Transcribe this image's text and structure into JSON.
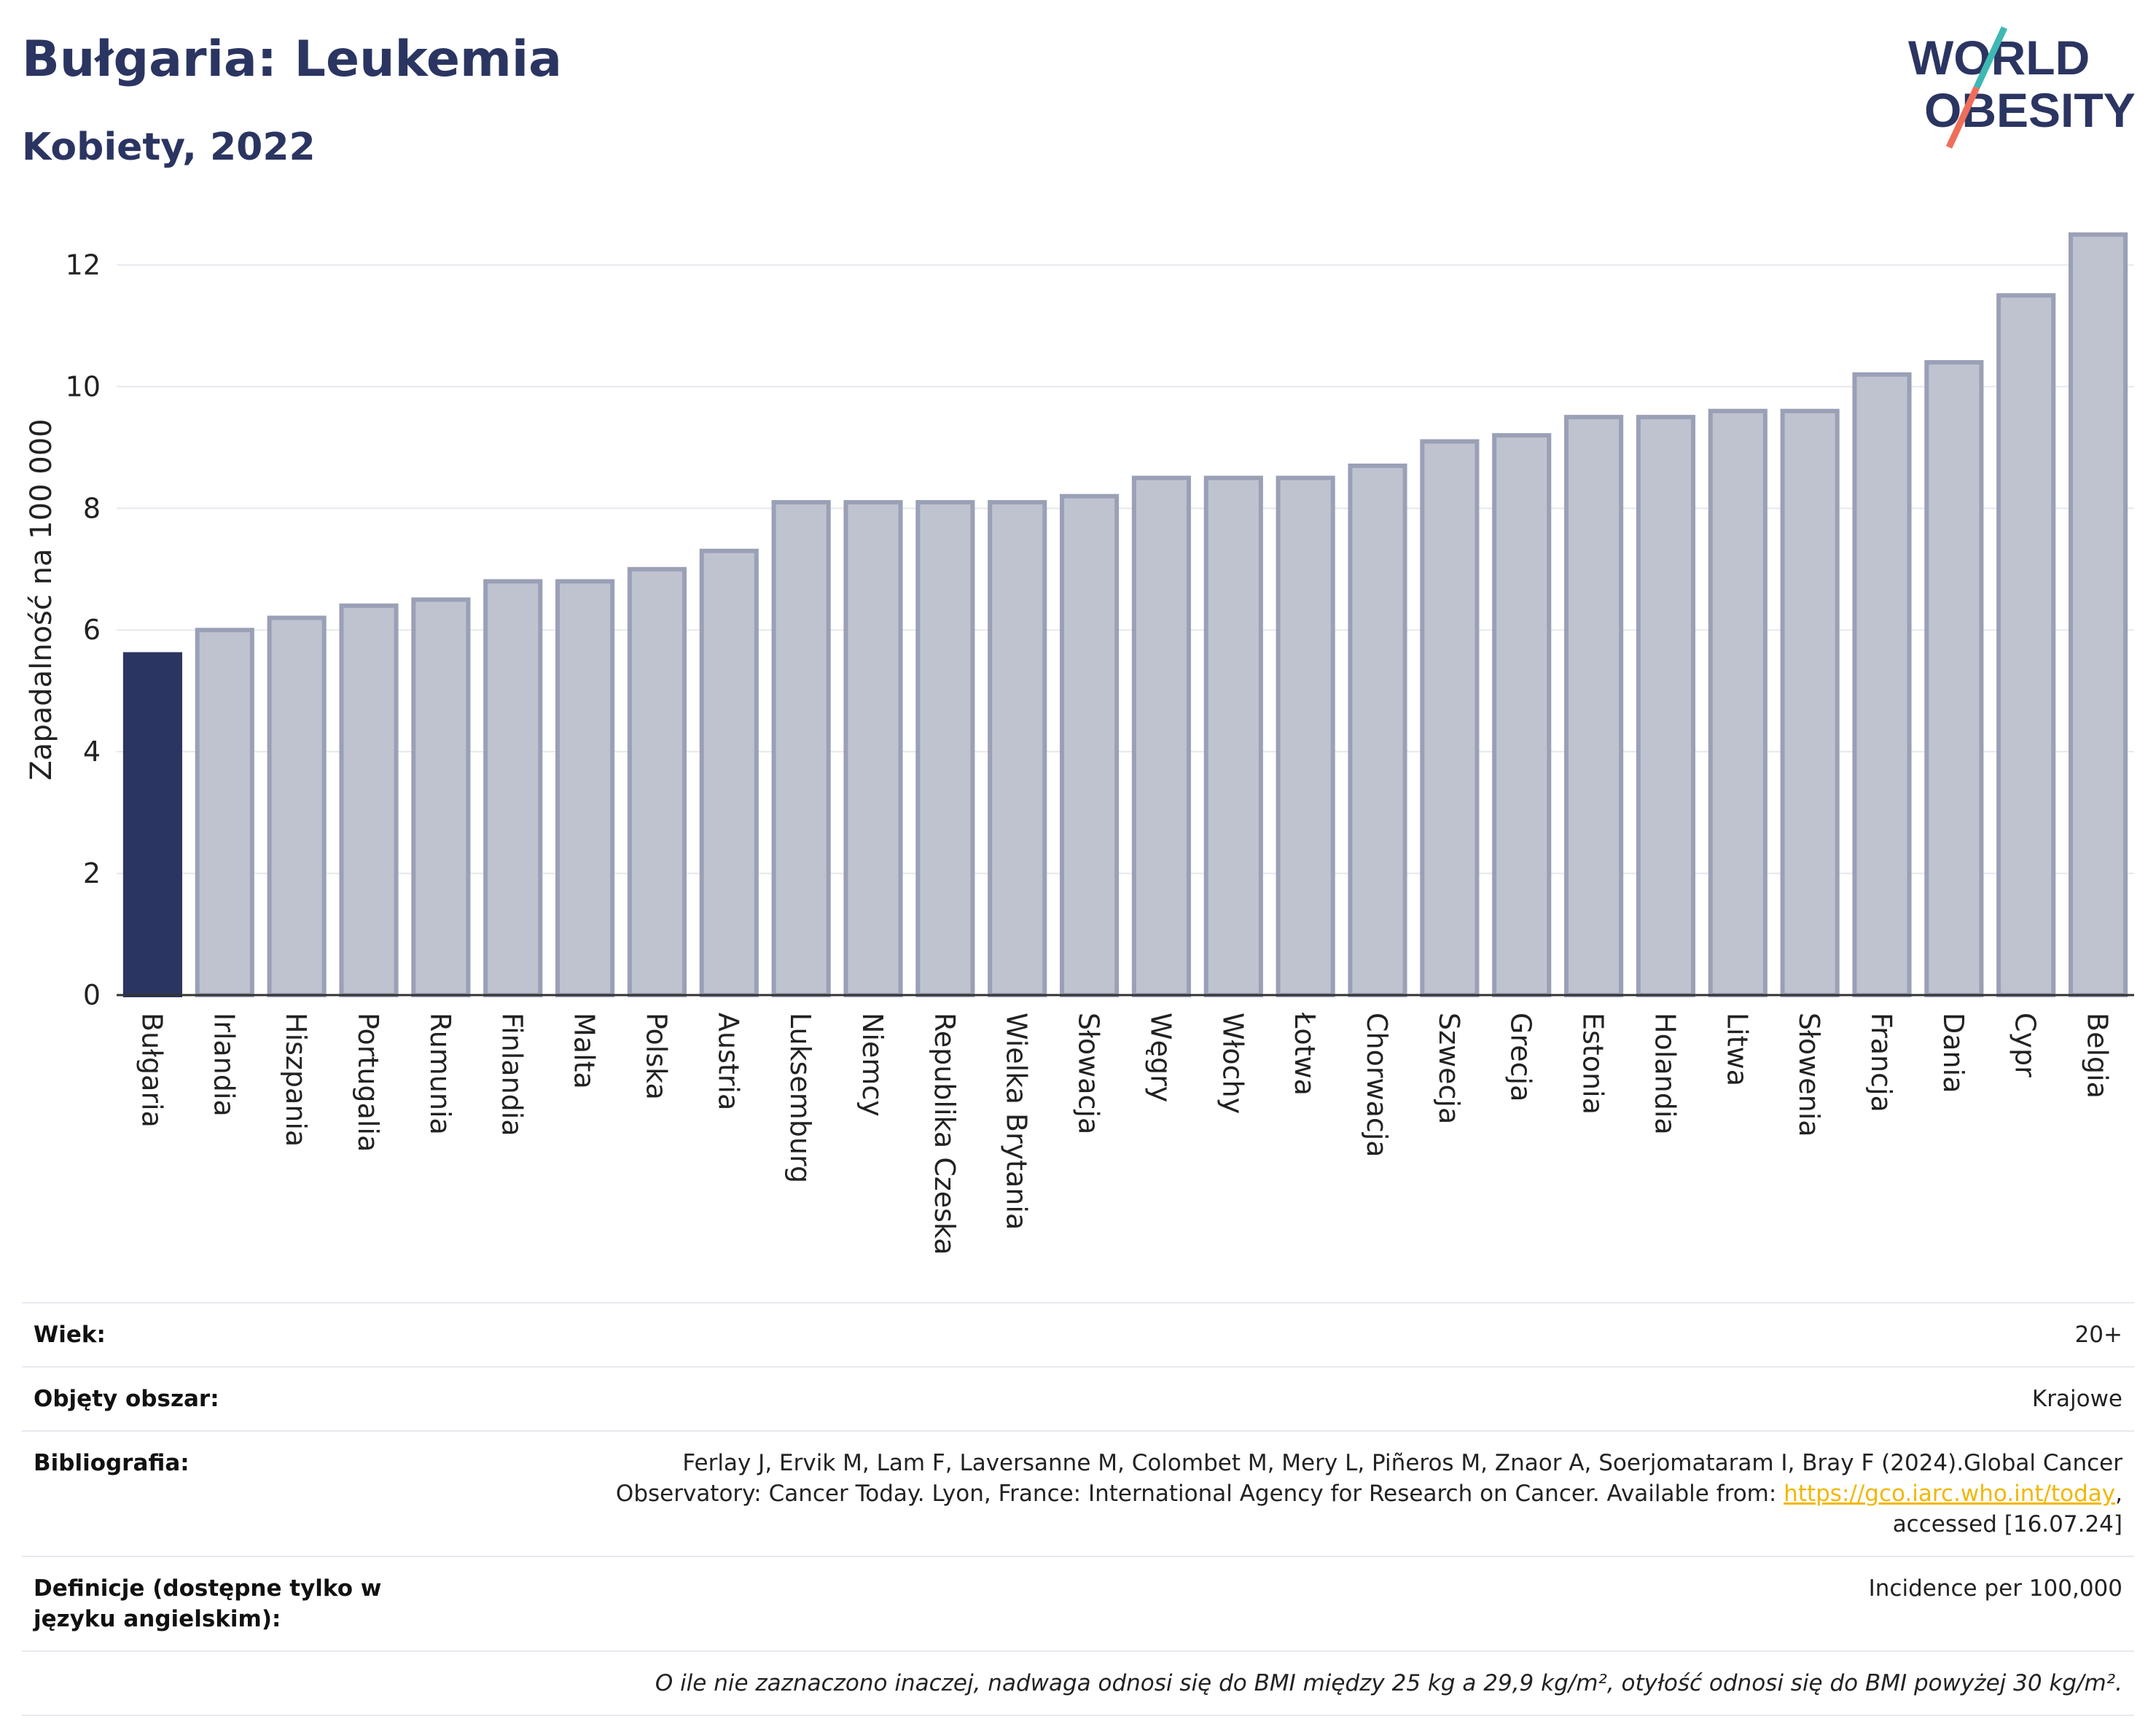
{
  "header": {
    "title": "Bułgaria: Leukemia",
    "subtitle": "Kobiety, 2022",
    "logo_line1": "WORLD",
    "logo_line2": "OBESITY"
  },
  "colors": {
    "highlight_bar": "#2b3561",
    "other_bar": "#bfc3d0",
    "bar_border": "#9aa0b6",
    "gridline": "#e6e8ef",
    "logo_navy": "#2b3561",
    "logo_teal": "#3fb8b3",
    "logo_coral": "#ef6e5a",
    "link": "#f2b705"
  },
  "chart_data": {
    "type": "bar",
    "ylabel": "Zapadalność na 100 000",
    "xlabel": "",
    "ylim": [
      0,
      13
    ],
    "yticks": [
      0,
      2,
      4,
      6,
      8,
      10,
      12
    ],
    "grid": true,
    "highlight": "Bułgaria",
    "categories": [
      "Bułgaria",
      "Irlandia",
      "Hiszpania",
      "Portugalia",
      "Rumunia",
      "Finlandia",
      "Malta",
      "Polska",
      "Austria",
      "Luksemburg",
      "Niemcy",
      "Republika Czeska",
      "Wielka Brytania",
      "Słowacja",
      "Węgry",
      "Włochy",
      "Łotwa",
      "Chorwacja",
      "Szwecja",
      "Grecja",
      "Estonia",
      "Holandia",
      "Litwa",
      "Słowenia",
      "Francja",
      "Dania",
      "Cypr",
      "Belgia"
    ],
    "values": [
      5.6,
      6.0,
      6.2,
      6.4,
      6.5,
      6.8,
      6.8,
      7.0,
      7.3,
      8.1,
      8.1,
      8.1,
      8.1,
      8.2,
      8.5,
      8.5,
      8.5,
      8.7,
      9.1,
      9.2,
      9.5,
      9.5,
      9.6,
      9.6,
      10.2,
      10.4,
      11.5,
      12.5
    ]
  },
  "meta": {
    "age_label": "Wiek:",
    "age_value": "20+",
    "coverage_label": "Objęty obszar:",
    "coverage_value": "Krajowe",
    "bib_label": "Bibliografia:",
    "bib_line1": "Ferlay J, Ervik M, Lam F, Laversanne M, Colombet M, Mery L, Piñeros M, Znaor A, Soerjomataram I, Bray F (2024).Global Cancer",
    "bib_line2_pre": "Observatory: Cancer Today. Lyon, France: International Agency for Research on Cancer. Available from: ",
    "bib_link": "https://gco.iarc.who.int/today",
    "bib_line2_post": ",",
    "bib_line3": "accessed [16.07.24]",
    "def_label": "Definicje (dostępne tylko w języku angielskim):",
    "def_value": "Incidence per 100,000",
    "note": "O ile nie zaznaczono inaczej, nadwaga odnosi się do BMI między 25 kg a 29,9 kg/m², otyłość odnosi się do BMI powyżej 30 kg/m²."
  }
}
